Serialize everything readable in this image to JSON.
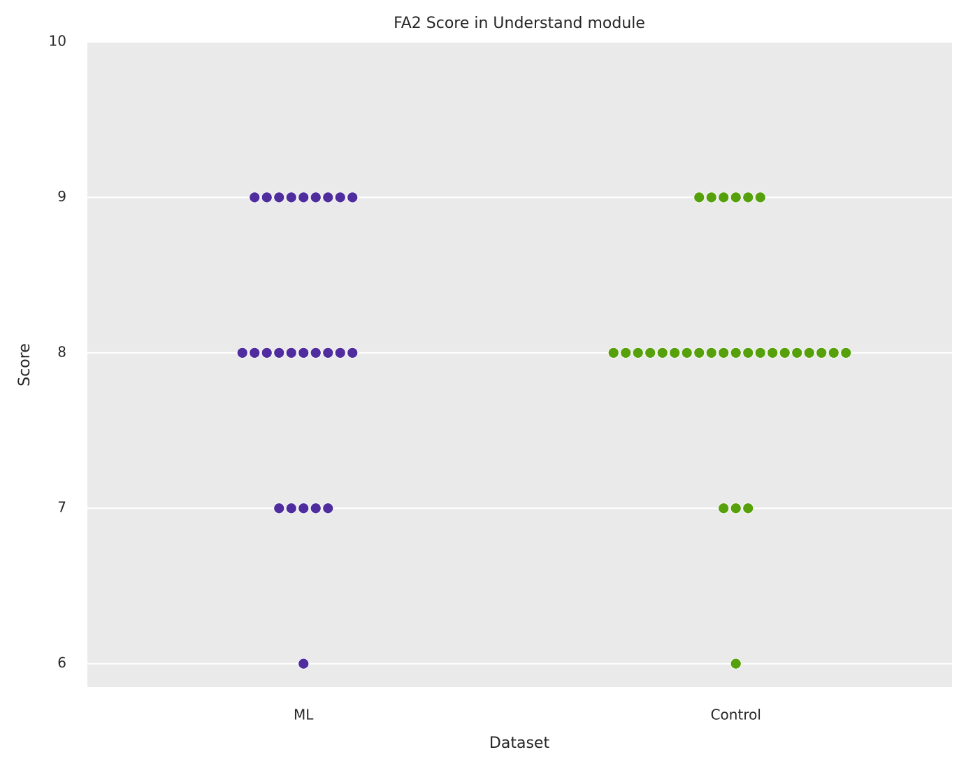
{
  "chart_data": {
    "type": "swarm",
    "title": "FA2 Score in Understand module",
    "x_label": "Dataset",
    "y_label": "Score",
    "categories": [
      "ML",
      "Control"
    ],
    "colors": [
      "#4f2d9e",
      "#55a00b"
    ],
    "values": [
      [
        9,
        9,
        9,
        9,
        9,
        9,
        9,
        9,
        9,
        8,
        8,
        8,
        8,
        8,
        8,
        8,
        8,
        8,
        8,
        7,
        7,
        7,
        7,
        7,
        6
      ],
      [
        9,
        9,
        9,
        9,
        9,
        9,
        8,
        8,
        8,
        8,
        8,
        8,
        8,
        8,
        8,
        8,
        8,
        8,
        8,
        8,
        8,
        8,
        8,
        8,
        8,
        8,
        7,
        7,
        7,
        6
      ]
    ],
    "ylim": [
      5.85,
      10
    ],
    "yticks": [
      6,
      7,
      8,
      9,
      10
    ],
    "grid": true
  }
}
